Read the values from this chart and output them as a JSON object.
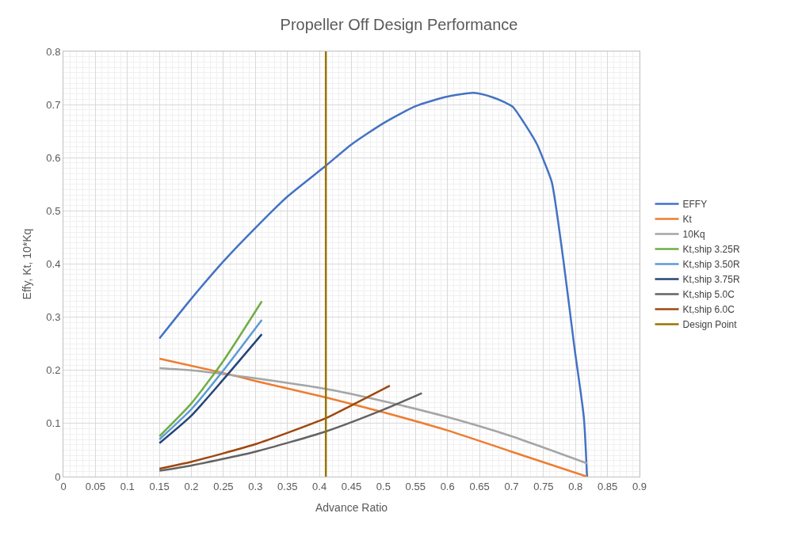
{
  "chart_data": {
    "type": "line",
    "title": "Propeller Off Design Performance",
    "xlabel": "Advance Ratio",
    "ylabel": "Effy, Kt, 10*Kq",
    "xlim": [
      0,
      0.9
    ],
    "xticks": [
      0,
      0.05,
      0.1,
      0.15,
      0.2,
      0.25,
      0.3,
      0.35,
      0.4,
      0.45,
      0.5,
      0.55,
      0.6,
      0.65,
      0.7,
      0.75,
      0.8,
      0.85,
      0.9
    ],
    "ylim": [
      0,
      0.8
    ],
    "yticks": [
      0,
      0.1,
      0.2,
      0.3,
      0.4,
      0.5,
      0.6,
      0.7,
      0.8
    ],
    "grid": true,
    "legend": "right",
    "marker": "none",
    "line_style": "solid",
    "series": [
      {
        "name": "EFFY",
        "color": "#4472c4",
        "x": [
          0.15,
          0.2,
          0.25,
          0.3,
          0.35,
          0.41,
          0.45,
          0.5,
          0.55,
          0.6,
          0.641,
          0.67,
          0.69,
          0.702,
          0.72,
          0.74,
          0.75,
          0.763,
          0.781,
          0.798,
          0.813,
          0.818
        ],
        "values": [
          0.26,
          0.335,
          0.405,
          0.468,
          0.527,
          0.585,
          0.625,
          0.665,
          0.697,
          0.715,
          0.722,
          0.714,
          0.704,
          0.696,
          0.665,
          0.625,
          0.596,
          0.554,
          0.408,
          0.246,
          0.112,
          0.0
        ]
      },
      {
        "name": "Kt",
        "color": "#ed7d31",
        "x": [
          0.15,
          0.25,
          0.3,
          0.41,
          0.5,
          0.6,
          0.7,
          0.818
        ],
        "values": [
          0.222,
          0.195,
          0.18,
          0.149,
          0.121,
          0.087,
          0.047,
          0.0
        ]
      },
      {
        "name": "10Kq",
        "color": "#a5a5a5",
        "x": [
          0.15,
          0.2,
          0.25,
          0.3,
          0.41,
          0.5,
          0.6,
          0.7,
          0.818
        ],
        "values": [
          0.204,
          0.2,
          0.193,
          0.185,
          0.165,
          0.142,
          0.112,
          0.076,
          0.025
        ]
      },
      {
        "name": "Kt,ship 3.25R",
        "color": "#70ad47",
        "x": [
          0.15,
          0.2,
          0.25,
          0.31
        ],
        "values": [
          0.076,
          0.138,
          0.218,
          0.33
        ]
      },
      {
        "name": "Kt,ship 3.50R",
        "color": "#5b9bd5",
        "x": [
          0.15,
          0.2,
          0.25,
          0.31
        ],
        "values": [
          0.07,
          0.127,
          0.2,
          0.295
        ]
      },
      {
        "name": "Kt,ship 3.75R",
        "color": "#264478",
        "x": [
          0.15,
          0.2,
          0.25,
          0.31
        ],
        "values": [
          0.063,
          0.115,
          0.183,
          0.268
        ]
      },
      {
        "name": "Kt,ship 5.0C",
        "color": "#636363",
        "x": [
          0.15,
          0.2,
          0.3,
          0.41,
          0.5,
          0.56
        ],
        "values": [
          0.011,
          0.021,
          0.047,
          0.085,
          0.126,
          0.157
        ]
      },
      {
        "name": "Kt,ship 6.0C",
        "color": "#9e480e",
        "x": [
          0.15,
          0.2,
          0.3,
          0.41,
          0.45,
          0.51
        ],
        "values": [
          0.015,
          0.028,
          0.061,
          0.11,
          0.134,
          0.171
        ]
      },
      {
        "name": "Design Point",
        "color": "#997300",
        "x": [
          0.41,
          0.41
        ],
        "values": [
          0,
          0.8
        ]
      }
    ]
  }
}
